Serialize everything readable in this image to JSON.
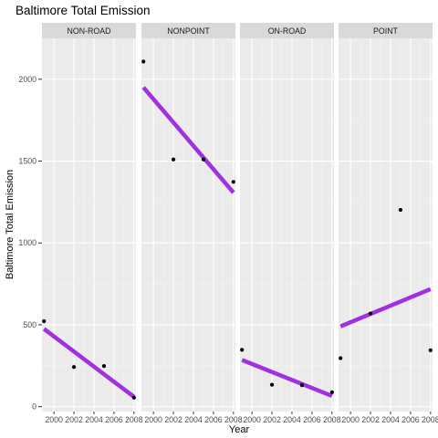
{
  "chart_data": {
    "type": "scatter",
    "title": "Baltimore Total Emission",
    "xlabel": "Year",
    "ylabel": "Baltimore Total Emission",
    "xlim": [
      1998.8,
      2008.2
    ],
    "ylim": [
      -30,
      2250
    ],
    "x_ticks": [
      2000,
      2002,
      2004,
      2006,
      2008
    ],
    "x_tick_labels": [
      "2000",
      "2002",
      "2004",
      "2006",
      "2008"
    ],
    "y_ticks": [
      0,
      500,
      1000,
      1500,
      2000
    ],
    "y_tick_labels": [
      "0",
      "500",
      "1000",
      "1500",
      "2000"
    ],
    "grid": true,
    "panel_background": "#ebebeb",
    "strip_background": "#d9d9d9",
    "point_color": "#000000",
    "trend_color": "#a030e0",
    "facets": [
      {
        "label": "NON-ROAD",
        "points": [
          {
            "x": 1999,
            "y": 522
          },
          {
            "x": 2002,
            "y": 242
          },
          {
            "x": 2005,
            "y": 248
          },
          {
            "x": 2008,
            "y": 55
          }
        ],
        "trend": {
          "x": [
            1999,
            2008
          ],
          "y": [
            475,
            60
          ]
        }
      },
      {
        "label": "NONPOINT",
        "points": [
          {
            "x": 1999,
            "y": 2108
          },
          {
            "x": 2002,
            "y": 1510
          },
          {
            "x": 2005,
            "y": 1510
          },
          {
            "x": 2008,
            "y": 1373
          }
        ],
        "trend": {
          "x": [
            1999,
            2008
          ],
          "y": [
            1950,
            1308
          ]
        }
      },
      {
        "label": "ON-ROAD",
        "points": [
          {
            "x": 1999,
            "y": 347
          },
          {
            "x": 2002,
            "y": 134
          },
          {
            "x": 2005,
            "y": 131
          },
          {
            "x": 2008,
            "y": 88
          }
        ],
        "trend": {
          "x": [
            1999,
            2008
          ],
          "y": [
            285,
            65
          ]
        }
      },
      {
        "label": "POINT",
        "points": [
          {
            "x": 1999,
            "y": 296
          },
          {
            "x": 2002,
            "y": 569
          },
          {
            "x": 2005,
            "y": 1202
          },
          {
            "x": 2008,
            "y": 344
          }
        ],
        "trend": {
          "x": [
            1999,
            2008
          ],
          "y": [
            490,
            718
          ]
        }
      }
    ]
  }
}
